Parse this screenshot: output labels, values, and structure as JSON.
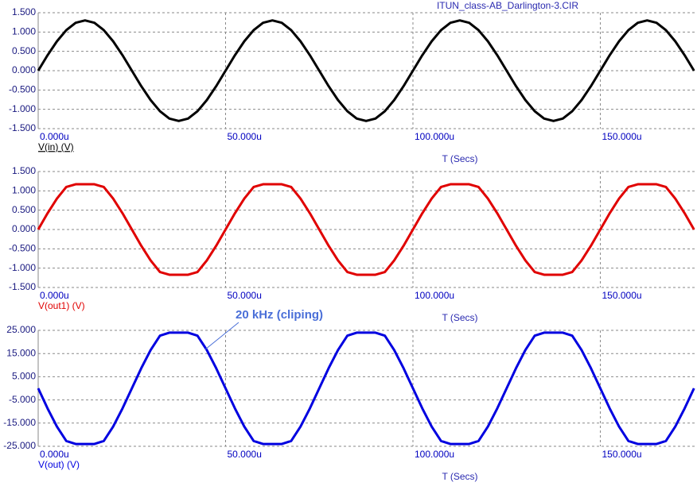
{
  "chart_data": [
    {
      "type": "line",
      "title": "ITUN_class-AB_Darlington-3.CIR",
      "xlabel": "T (Secs)",
      "xlim": [
        0,
        175.8
      ],
      "xticks": [
        {
          "value": 0,
          "label": "0.000u"
        },
        {
          "value": 50,
          "label": "50.000u"
        },
        {
          "value": 100,
          "label": "100.000u"
        },
        {
          "value": 150,
          "label": "150.000u"
        }
      ],
      "ylim": [
        -1.5,
        1.5
      ],
      "yticks": [
        {
          "value": -1.5,
          "label": "-1.500"
        },
        {
          "value": -1,
          "label": "-1.000"
        },
        {
          "value": -0.5,
          "label": "-0.500"
        },
        {
          "value": 0,
          "label": "0.000"
        },
        {
          "value": 0.5,
          "label": "0.500"
        },
        {
          "value": 1,
          "label": "1.000"
        },
        {
          "value": 1.5,
          "label": "1.500"
        }
      ],
      "grid": true,
      "x": [
        0,
        2.5,
        5,
        7.5,
        10,
        12.5,
        15,
        17.5,
        20,
        22.5,
        25,
        27.5,
        30,
        32.5,
        35,
        37.5,
        40,
        42.5,
        45,
        47.5,
        50,
        52.5,
        55,
        57.5,
        60,
        62.5,
        65,
        67.5,
        70,
        72.5,
        75,
        77.5,
        80,
        82.5,
        85,
        87.5,
        90,
        92.5,
        95,
        97.5,
        100,
        102.5,
        105,
        107.5,
        110,
        112.5,
        115,
        117.5,
        120,
        122.5,
        125,
        127.5,
        130,
        132.5,
        135,
        137.5,
        140,
        142.5,
        145,
        147.5,
        150,
        152.5,
        155,
        157.5,
        160,
        162.5,
        165,
        167.5,
        170,
        172.5,
        175
      ],
      "series": [
        {
          "name": "V(in) (V)",
          "color": "#000000",
          "values": [
            0,
            0.4,
            0.76,
            1.05,
            1.24,
            1.3,
            1.24,
            1.05,
            0.76,
            0.4,
            0,
            -0.4,
            -0.76,
            -1.05,
            -1.24,
            -1.3,
            -1.24,
            -1.05,
            -0.76,
            -0.4,
            0,
            0.4,
            0.76,
            1.05,
            1.24,
            1.3,
            1.24,
            1.05,
            0.76,
            0.4,
            0,
            -0.4,
            -0.76,
            -1.05,
            -1.24,
            -1.3,
            -1.24,
            -1.05,
            -0.76,
            -0.4,
            0,
            0.4,
            0.76,
            1.05,
            1.24,
            1.3,
            1.24,
            1.05,
            0.76,
            0.4,
            0,
            -0.4,
            -0.76,
            -1.05,
            -1.24,
            -1.3,
            -1.24,
            -1.05,
            -0.76,
            -0.4,
            0,
            0.4,
            0.76,
            1.05,
            1.24,
            1.3,
            1.24,
            1.05,
            0.76,
            0.4,
            0
          ]
        }
      ]
    },
    {
      "type": "line",
      "xlabel": "T (Secs)",
      "xlim": [
        0,
        175.8
      ],
      "xticks": [
        {
          "value": 0,
          "label": "0.000u"
        },
        {
          "value": 50,
          "label": "50.000u"
        },
        {
          "value": 100,
          "label": "100.000u"
        },
        {
          "value": 150,
          "label": "150.000u"
        }
      ],
      "ylim": [
        -1.5,
        1.5
      ],
      "yticks": [
        {
          "value": -1.5,
          "label": "-1.500"
        },
        {
          "value": -1,
          "label": "-1.000"
        },
        {
          "value": -0.5,
          "label": "-0.500"
        },
        {
          "value": 0,
          "label": "0.000"
        },
        {
          "value": 0.5,
          "label": "0.500"
        },
        {
          "value": 1,
          "label": "1.000"
        },
        {
          "value": 1.5,
          "label": "1.500"
        }
      ],
      "grid": true,
      "x": [
        0,
        2.5,
        5,
        7.5,
        10,
        12.5,
        15,
        17.5,
        20,
        22.5,
        25,
        27.5,
        30,
        32.5,
        35,
        37.5,
        40,
        42.5,
        45,
        47.5,
        50,
        52.5,
        55,
        57.5,
        60,
        62.5,
        65,
        67.5,
        70,
        72.5,
        75,
        77.5,
        80,
        82.5,
        85,
        87.5,
        90,
        92.5,
        95,
        97.5,
        100,
        102.5,
        105,
        107.5,
        110,
        112.5,
        115,
        117.5,
        120,
        122.5,
        125,
        127.5,
        130,
        132.5,
        135,
        137.5,
        140,
        142.5,
        145,
        147.5,
        150,
        152.5,
        155,
        157.5,
        160,
        162.5,
        165,
        167.5,
        170,
        172.5,
        175
      ],
      "series": [
        {
          "name": "V(out1) (V)",
          "color": "#e00000",
          "values": [
            0,
            0.42,
            0.8,
            1.1,
            1.17,
            1.17,
            1.17,
            1.1,
            0.8,
            0.42,
            0,
            -0.42,
            -0.8,
            -1.1,
            -1.17,
            -1.17,
            -1.17,
            -1.1,
            -0.8,
            -0.42,
            0,
            0.42,
            0.8,
            1.1,
            1.17,
            1.17,
            1.17,
            1.1,
            0.8,
            0.42,
            0,
            -0.42,
            -0.8,
            -1.1,
            -1.17,
            -1.17,
            -1.17,
            -1.1,
            -0.8,
            -0.42,
            0,
            0.42,
            0.8,
            1.1,
            1.17,
            1.17,
            1.17,
            1.1,
            0.8,
            0.42,
            0,
            -0.42,
            -0.8,
            -1.1,
            -1.17,
            -1.17,
            -1.17,
            -1.1,
            -0.8,
            -0.42,
            0,
            0.42,
            0.8,
            1.1,
            1.17,
            1.17,
            1.17,
            1.1,
            0.8,
            0.42,
            0
          ]
        }
      ]
    },
    {
      "type": "line",
      "xlabel": "T (Secs)",
      "annotation": "20 kHz (cliping)",
      "xlim": [
        0,
        175.8
      ],
      "xticks": [
        {
          "value": 0,
          "label": "0.000u"
        },
        {
          "value": 50,
          "label": "50.000u"
        },
        {
          "value": 100,
          "label": "100.000u"
        },
        {
          "value": 150,
          "label": "150.000u"
        }
      ],
      "ylim": [
        -25,
        25
      ],
      "yticks": [
        {
          "value": -25,
          "label": "-25.000"
        },
        {
          "value": -15,
          "label": "-15.000"
        },
        {
          "value": -5,
          "label": "-5.000"
        },
        {
          "value": 5,
          "label": "5.000"
        },
        {
          "value": 15,
          "label": "15.000"
        },
        {
          "value": 25,
          "label": "25.000"
        }
      ],
      "grid": true,
      "x": [
        0,
        2.5,
        5,
        7.5,
        10,
        12.5,
        15,
        17.5,
        20,
        22.5,
        25,
        27.5,
        30,
        32.5,
        35,
        37.5,
        40,
        42.5,
        45,
        47.5,
        50,
        52.5,
        55,
        57.5,
        60,
        62.5,
        65,
        67.5,
        70,
        72.5,
        75,
        77.5,
        80,
        82.5,
        85,
        87.5,
        90,
        92.5,
        95,
        97.5,
        100,
        102.5,
        105,
        107.5,
        110,
        112.5,
        115,
        117.5,
        120,
        122.5,
        125,
        127.5,
        130,
        132.5,
        135,
        137.5,
        140,
        142.5,
        145,
        147.5,
        150,
        152.5,
        155,
        157.5,
        160,
        162.5,
        165,
        167.5,
        170,
        172.5,
        175
      ],
      "series": [
        {
          "name": "V(out) (V)",
          "color": "#0000e0",
          "values": [
            0,
            -8.65,
            -16.5,
            -22.7,
            -24,
            -24,
            -24,
            -22.7,
            -16.5,
            -8.65,
            0,
            8.65,
            16.5,
            22.7,
            24,
            24,
            24,
            22.7,
            16.5,
            8.65,
            0,
            -8.65,
            -16.5,
            -22.7,
            -24,
            -24,
            -24,
            -22.7,
            -16.5,
            -8.65,
            0,
            8.65,
            16.5,
            22.7,
            24,
            24,
            24,
            22.7,
            16.5,
            8.65,
            0,
            -8.65,
            -16.5,
            -22.7,
            -24,
            -24,
            -24,
            -22.7,
            -16.5,
            -8.65,
            0,
            8.65,
            16.5,
            22.7,
            24,
            24,
            24,
            22.7,
            16.5,
            8.65,
            0,
            -8.65,
            -16.5,
            -22.7,
            -24,
            -24,
            -24,
            -22.7,
            -16.5,
            -8.65,
            0
          ]
        }
      ]
    }
  ]
}
